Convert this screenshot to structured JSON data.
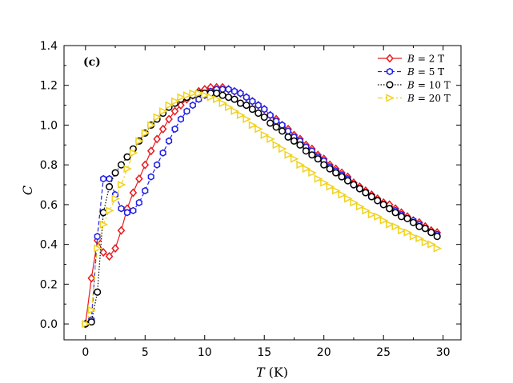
{
  "chart_data": {
    "type": "line",
    "panel_label": "(c)",
    "xlabel": "T",
    "xlabel_unit": "(K)",
    "ylabel": "C",
    "xlim": [
      -1.8,
      31.5
    ],
    "ylim": [
      -0.08,
      1.4
    ],
    "xticks": [
      0,
      5,
      10,
      15,
      20,
      25,
      30
    ],
    "yticks": [
      0.0,
      0.2,
      0.4,
      0.6,
      0.8,
      1.0,
      1.2,
      1.4
    ],
    "xtick_labels": [
      "0",
      "5",
      "10",
      "15",
      "20",
      "25",
      "30"
    ],
    "ytick_labels": [
      "0.0",
      "0.2",
      "0.4",
      "0.6",
      "0.8",
      "1.0",
      "1.2",
      "1.4"
    ],
    "legend_position": "top-right",
    "series": [
      {
        "name": "B = 2 T",
        "legend_var": "B",
        "legend_value": "= 2 T",
        "color": "#e8191e",
        "marker": "diamond",
        "linestyle": "solid",
        "points": [
          [
            0.0,
            0.0
          ],
          [
            0.5,
            0.23
          ],
          [
            1.0,
            0.42
          ],
          [
            1.5,
            0.36
          ],
          [
            2.0,
            0.34
          ],
          [
            2.5,
            0.38
          ],
          [
            3.0,
            0.47
          ],
          [
            3.5,
            0.58
          ],
          [
            4.0,
            0.66
          ],
          [
            4.5,
            0.73
          ],
          [
            5.0,
            0.8
          ],
          [
            5.5,
            0.87
          ],
          [
            6.0,
            0.93
          ],
          [
            6.5,
            0.98
          ],
          [
            7.0,
            1.03
          ],
          [
            7.5,
            1.07
          ],
          [
            8.0,
            1.1
          ],
          [
            8.5,
            1.13
          ],
          [
            9.0,
            1.15
          ],
          [
            9.5,
            1.17
          ],
          [
            10.0,
            1.18
          ],
          [
            10.5,
            1.19
          ],
          [
            11.0,
            1.19
          ],
          [
            11.5,
            1.19
          ],
          [
            12.0,
            1.18
          ],
          [
            12.5,
            1.17
          ],
          [
            13.0,
            1.16
          ],
          [
            13.5,
            1.14
          ],
          [
            14.0,
            1.12
          ],
          [
            14.5,
            1.1
          ],
          [
            15.0,
            1.08
          ],
          [
            15.5,
            1.05
          ],
          [
            16.0,
            1.03
          ],
          [
            16.5,
            1.0
          ],
          [
            17.0,
            0.98
          ],
          [
            17.5,
            0.95
          ],
          [
            18.0,
            0.93
          ],
          [
            18.5,
            0.9
          ],
          [
            19.0,
            0.88
          ],
          [
            19.5,
            0.85
          ],
          [
            20.0,
            0.83
          ],
          [
            20.5,
            0.8
          ],
          [
            21.0,
            0.78
          ],
          [
            21.5,
            0.76
          ],
          [
            22.0,
            0.74
          ],
          [
            22.5,
            0.71
          ],
          [
            23.0,
            0.69
          ],
          [
            23.5,
            0.67
          ],
          [
            24.0,
            0.65
          ],
          [
            24.5,
            0.63
          ],
          [
            25.0,
            0.61
          ],
          [
            25.5,
            0.6
          ],
          [
            26.0,
            0.58
          ],
          [
            26.5,
            0.56
          ],
          [
            27.0,
            0.54
          ],
          [
            27.5,
            0.52
          ],
          [
            28.0,
            0.51
          ],
          [
            28.5,
            0.49
          ],
          [
            29.0,
            0.47
          ],
          [
            29.5,
            0.46
          ]
        ]
      },
      {
        "name": "B = 5 T",
        "legend_var": "B",
        "legend_value": "= 5 T",
        "color": "#1f1fe8",
        "marker": "hexagon",
        "linestyle": "dashed",
        "points": [
          [
            0.0,
            0.0
          ],
          [
            0.5,
            0.02
          ],
          [
            1.0,
            0.44
          ],
          [
            1.5,
            0.73
          ],
          [
            2.0,
            0.73
          ],
          [
            2.5,
            0.65
          ],
          [
            3.0,
            0.58
          ],
          [
            3.5,
            0.56
          ],
          [
            4.0,
            0.57
          ],
          [
            4.5,
            0.61
          ],
          [
            5.0,
            0.67
          ],
          [
            5.5,
            0.74
          ],
          [
            6.0,
            0.8
          ],
          [
            6.5,
            0.86
          ],
          [
            7.0,
            0.92
          ],
          [
            7.5,
            0.98
          ],
          [
            8.0,
            1.03
          ],
          [
            8.5,
            1.07
          ],
          [
            9.0,
            1.1
          ],
          [
            9.5,
            1.13
          ],
          [
            10.0,
            1.15
          ],
          [
            10.5,
            1.17
          ],
          [
            11.0,
            1.18
          ],
          [
            11.5,
            1.18
          ],
          [
            12.0,
            1.18
          ],
          [
            12.5,
            1.17
          ],
          [
            13.0,
            1.16
          ],
          [
            13.5,
            1.14
          ],
          [
            14.0,
            1.12
          ],
          [
            14.5,
            1.1
          ],
          [
            15.0,
            1.08
          ],
          [
            15.5,
            1.05
          ],
          [
            16.0,
            1.02
          ],
          [
            16.5,
            1.0
          ],
          [
            17.0,
            0.97
          ],
          [
            17.5,
            0.94
          ],
          [
            18.0,
            0.92
          ],
          [
            18.5,
            0.89
          ],
          [
            19.0,
            0.87
          ],
          [
            19.5,
            0.84
          ],
          [
            20.0,
            0.82
          ],
          [
            20.5,
            0.79
          ],
          [
            21.0,
            0.77
          ],
          [
            21.5,
            0.75
          ],
          [
            22.0,
            0.73
          ],
          [
            22.5,
            0.7
          ],
          [
            23.0,
            0.68
          ],
          [
            23.5,
            0.66
          ],
          [
            24.0,
            0.64
          ],
          [
            24.5,
            0.62
          ],
          [
            25.0,
            0.6
          ],
          [
            25.5,
            0.58
          ],
          [
            26.0,
            0.57
          ],
          [
            26.5,
            0.55
          ],
          [
            27.0,
            0.53
          ],
          [
            27.5,
            0.52
          ],
          [
            28.0,
            0.5
          ],
          [
            28.5,
            0.48
          ],
          [
            29.0,
            0.46
          ],
          [
            29.5,
            0.45
          ]
        ]
      },
      {
        "name": "B = 10 T",
        "legend_var": "B",
        "legend_value": "= 10 T",
        "color": "#000000",
        "marker": "circle",
        "linestyle": "dotted",
        "points": [
          [
            0.0,
            0.0
          ],
          [
            0.5,
            0.01
          ],
          [
            1.0,
            0.16
          ],
          [
            1.5,
            0.56
          ],
          [
            2.0,
            0.69
          ],
          [
            2.5,
            0.76
          ],
          [
            3.0,
            0.8
          ],
          [
            3.5,
            0.84
          ],
          [
            4.0,
            0.88
          ],
          [
            4.5,
            0.92
          ],
          [
            5.0,
            0.96
          ],
          [
            5.5,
            1.0
          ],
          [
            6.0,
            1.03
          ],
          [
            6.5,
            1.06
          ],
          [
            7.0,
            1.09
          ],
          [
            7.5,
            1.11
          ],
          [
            8.0,
            1.13
          ],
          [
            8.5,
            1.14
          ],
          [
            9.0,
            1.15
          ],
          [
            9.5,
            1.16
          ],
          [
            10.0,
            1.16
          ],
          [
            10.5,
            1.16
          ],
          [
            11.0,
            1.16
          ],
          [
            11.5,
            1.15
          ],
          [
            12.0,
            1.14
          ],
          [
            12.5,
            1.13
          ],
          [
            13.0,
            1.11
          ],
          [
            13.5,
            1.1
          ],
          [
            14.0,
            1.08
          ],
          [
            14.5,
            1.06
          ],
          [
            15.0,
            1.04
          ],
          [
            15.5,
            1.01
          ],
          [
            16.0,
            0.99
          ],
          [
            16.5,
            0.97
          ],
          [
            17.0,
            0.94
          ],
          [
            17.5,
            0.92
          ],
          [
            18.0,
            0.9
          ],
          [
            18.5,
            0.87
          ],
          [
            19.0,
            0.85
          ],
          [
            19.5,
            0.83
          ],
          [
            20.0,
            0.8
          ],
          [
            20.5,
            0.78
          ],
          [
            21.0,
            0.76
          ],
          [
            21.5,
            0.74
          ],
          [
            22.0,
            0.72
          ],
          [
            22.5,
            0.7
          ],
          [
            23.0,
            0.68
          ],
          [
            23.5,
            0.66
          ],
          [
            24.0,
            0.64
          ],
          [
            24.5,
            0.62
          ],
          [
            25.0,
            0.6
          ],
          [
            25.5,
            0.58
          ],
          [
            26.0,
            0.56
          ],
          [
            26.5,
            0.54
          ],
          [
            27.0,
            0.53
          ],
          [
            27.5,
            0.51
          ],
          [
            28.0,
            0.49
          ],
          [
            28.5,
            0.48
          ],
          [
            29.0,
            0.46
          ],
          [
            29.5,
            0.44
          ]
        ]
      },
      {
        "name": "B = 20 T",
        "legend_var": "B",
        "legend_value": "= 20 T",
        "color": "#f0d21e",
        "marker": "triangle-right",
        "linestyle": "dashdot",
        "points": [
          [
            0.0,
            0.0
          ],
          [
            0.5,
            0.07
          ],
          [
            1.0,
            0.38
          ],
          [
            1.5,
            0.5
          ],
          [
            2.0,
            0.57
          ],
          [
            2.5,
            0.63
          ],
          [
            3.0,
            0.7
          ],
          [
            3.5,
            0.78
          ],
          [
            4.0,
            0.86
          ],
          [
            4.5,
            0.92
          ],
          [
            5.0,
            0.96
          ],
          [
            5.5,
            1.0
          ],
          [
            6.0,
            1.04
          ],
          [
            6.5,
            1.07
          ],
          [
            7.0,
            1.1
          ],
          [
            7.5,
            1.12
          ],
          [
            8.0,
            1.14
          ],
          [
            8.5,
            1.15
          ],
          [
            9.0,
            1.16
          ],
          [
            9.5,
            1.16
          ],
          [
            10.0,
            1.15
          ],
          [
            10.5,
            1.14
          ],
          [
            11.0,
            1.13
          ],
          [
            11.5,
            1.11
          ],
          [
            12.0,
            1.09
          ],
          [
            12.5,
            1.07
          ],
          [
            13.0,
            1.05
          ],
          [
            13.5,
            1.03
          ],
          [
            14.0,
            1.0
          ],
          [
            14.5,
            0.98
          ],
          [
            15.0,
            0.95
          ],
          [
            15.5,
            0.93
          ],
          [
            16.0,
            0.9
          ],
          [
            16.5,
            0.88
          ],
          [
            17.0,
            0.85
          ],
          [
            17.5,
            0.83
          ],
          [
            18.0,
            0.8
          ],
          [
            18.5,
            0.78
          ],
          [
            19.0,
            0.76
          ],
          [
            19.5,
            0.73
          ],
          [
            20.0,
            0.71
          ],
          [
            20.5,
            0.69
          ],
          [
            21.0,
            0.67
          ],
          [
            21.5,
            0.65
          ],
          [
            22.0,
            0.63
          ],
          [
            22.5,
            0.61
          ],
          [
            23.0,
            0.59
          ],
          [
            23.5,
            0.57
          ],
          [
            24.0,
            0.55
          ],
          [
            24.5,
            0.54
          ],
          [
            25.0,
            0.52
          ],
          [
            25.5,
            0.5
          ],
          [
            26.0,
            0.49
          ],
          [
            26.5,
            0.47
          ],
          [
            27.0,
            0.46
          ],
          [
            27.5,
            0.44
          ],
          [
            28.0,
            0.43
          ],
          [
            28.5,
            0.41
          ],
          [
            29.0,
            0.4
          ],
          [
            29.5,
            0.38
          ]
        ]
      }
    ]
  }
}
